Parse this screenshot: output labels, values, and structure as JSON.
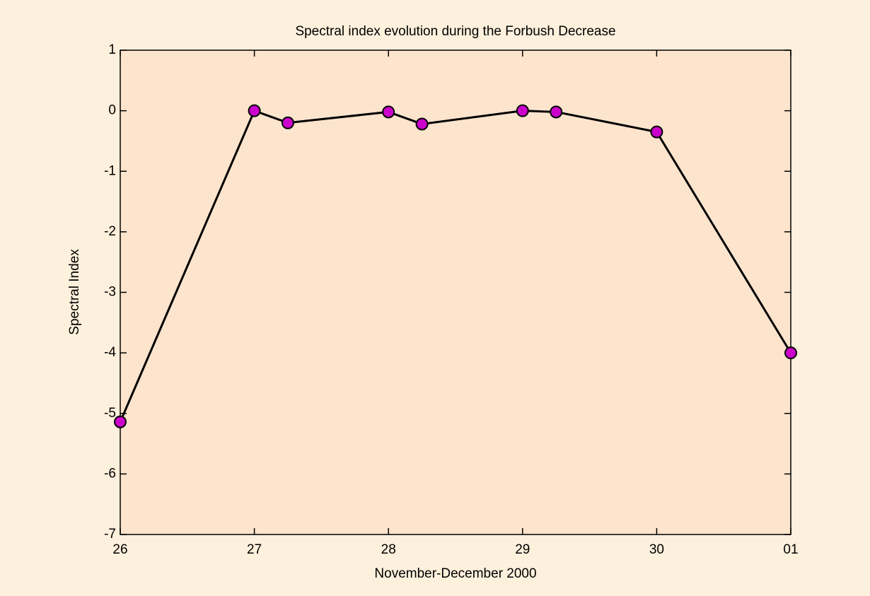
{
  "chart_data": {
    "type": "line",
    "title": "Spectral index evolution during the Forbush Decrease",
    "xlabel": "November-December 2000",
    "ylabel": "Spectral Index",
    "x": [
      26,
      27,
      27.25,
      28,
      28.25,
      29,
      29.25,
      30,
      31
    ],
    "values": [
      -5.14,
      0,
      -0.2,
      -0.02,
      -0.22,
      0,
      -0.02,
      -0.35,
      -4
    ],
    "color": "#000000",
    "marker_color": "#cc00cc",
    "xlim": [
      26,
      31
    ],
    "xticks": [
      26,
      27,
      28,
      29,
      30,
      {
        "value": 31,
        "label": "01"
      }
    ],
    "ylim": [
      -7,
      1
    ],
    "yticks": [
      -7,
      -6,
      -5,
      -4,
      -3,
      -2,
      -1,
      0,
      1
    ],
    "grid": false
  }
}
